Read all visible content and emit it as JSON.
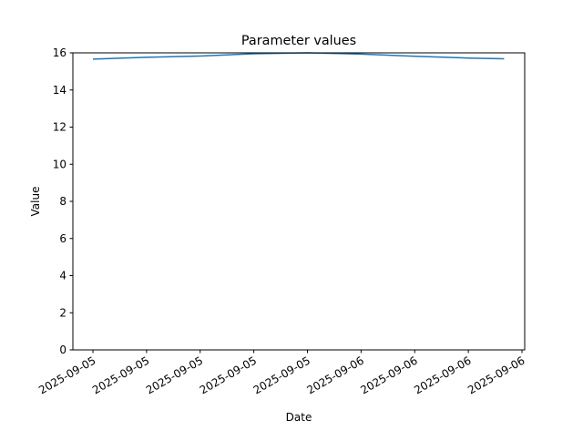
{
  "chart_data": {
    "type": "line",
    "title": "Parameter values",
    "xlabel": "Date",
    "ylabel": "Value",
    "ylim": [
      0,
      16
    ],
    "yticks": [
      0,
      2,
      4,
      6,
      8,
      10,
      12,
      14,
      16
    ],
    "xticks": [
      {
        "t": "2025-09-05T09:00",
        "label": "2025-09-05"
      },
      {
        "t": "2025-09-05T12:00",
        "label": "2025-09-05"
      },
      {
        "t": "2025-09-05T15:00",
        "label": "2025-09-05"
      },
      {
        "t": "2025-09-05T18:00",
        "label": "2025-09-05"
      },
      {
        "t": "2025-09-05T21:00",
        "label": "2025-09-05"
      },
      {
        "t": "2025-09-06T00:00",
        "label": "2025-09-06"
      },
      {
        "t": "2025-09-06T03:00",
        "label": "2025-09-06"
      },
      {
        "t": "2025-09-06T06:00",
        "label": "2025-09-06"
      },
      {
        "t": "2025-09-06T09:00",
        "label": "2025-09-06"
      }
    ],
    "grid": false,
    "series": [
      {
        "color": "#1f77b4",
        "x": [
          "2025-09-05T09:00",
          "2025-09-05T12:00",
          "2025-09-05T15:00",
          "2025-09-05T18:00",
          "2025-09-05T21:00",
          "2025-09-06T00:00",
          "2025-09-06T03:00",
          "2025-09-06T06:00",
          "2025-09-06T08:00"
        ],
        "y": [
          15.66,
          15.76,
          15.83,
          15.95,
          16.0,
          15.93,
          15.82,
          15.72,
          15.68
        ]
      }
    ]
  }
}
